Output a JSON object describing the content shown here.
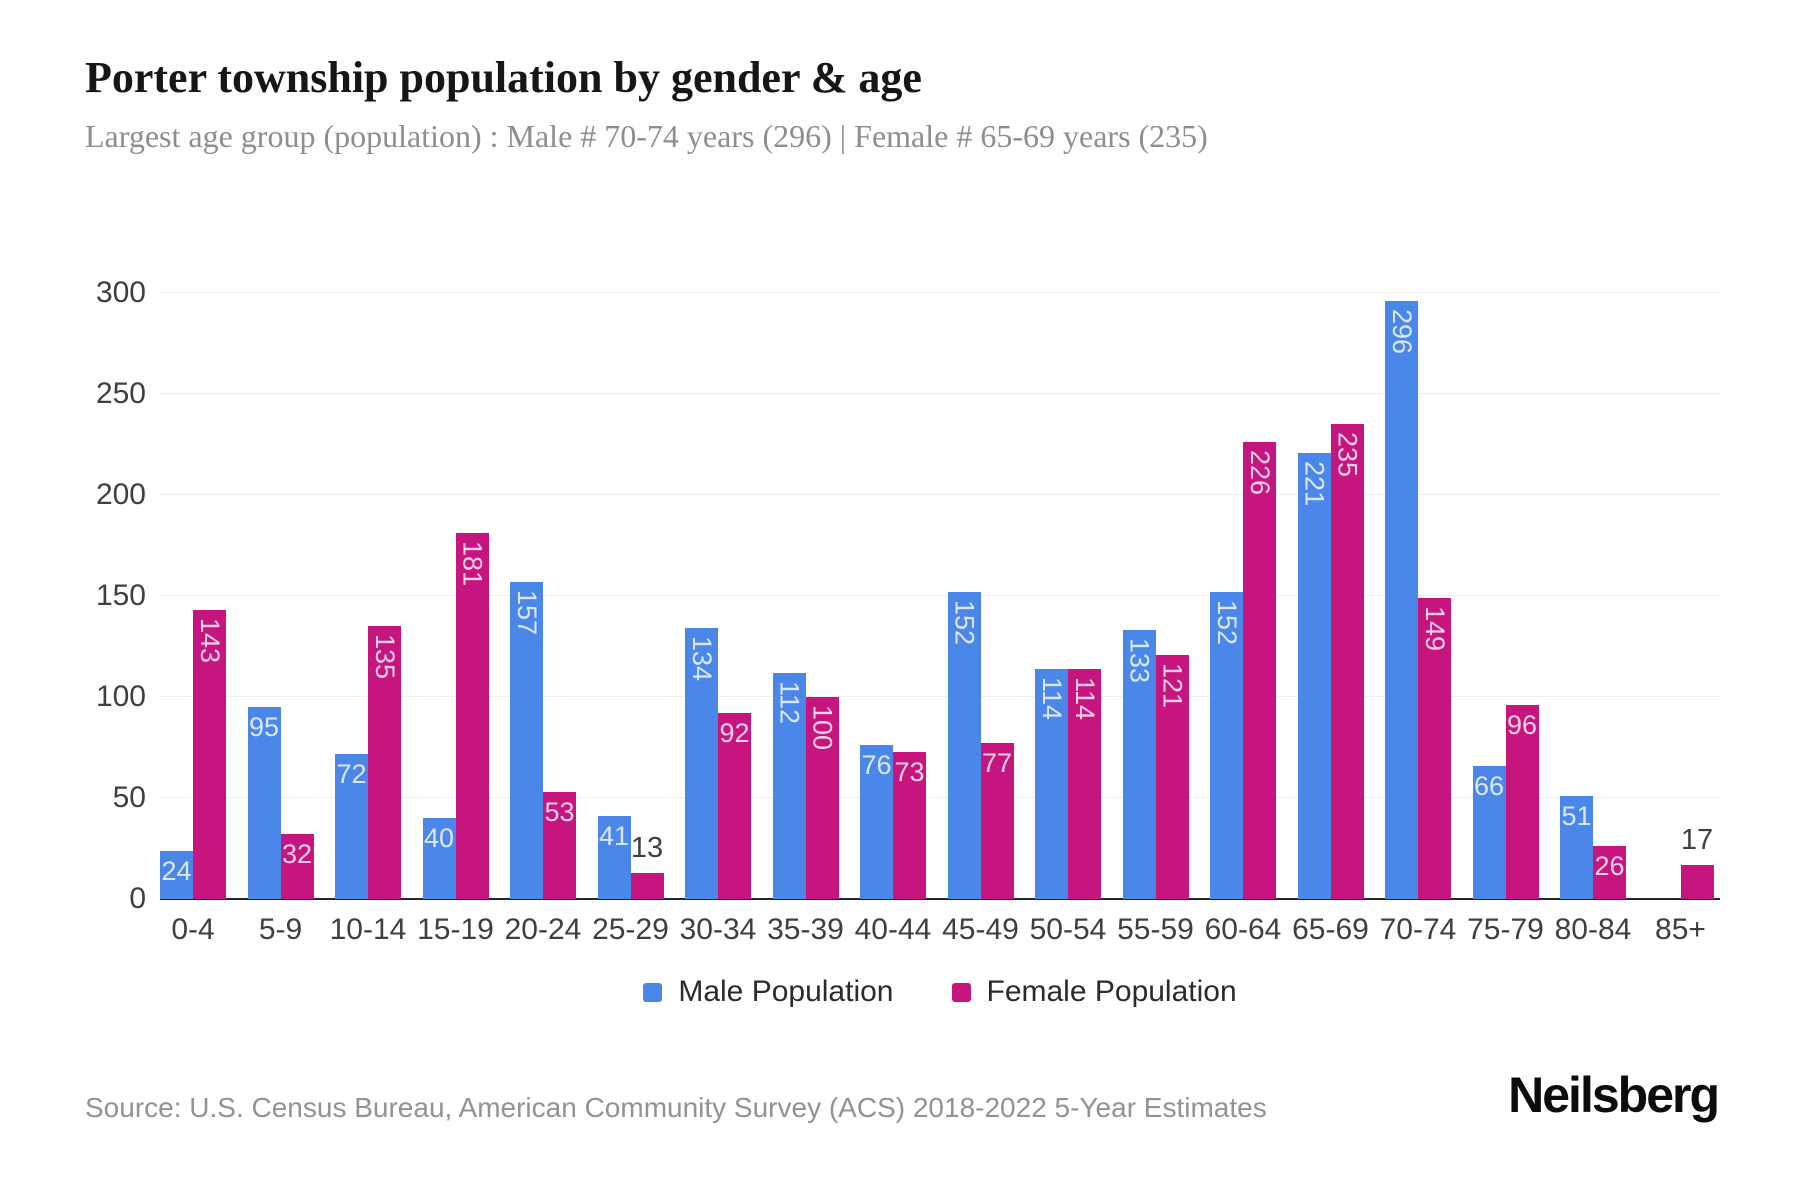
{
  "header": {
    "title": "Porter township population by gender & age",
    "subtitle": "Largest age group (population) : Male # 70-74 years (296) | Female # 65-69 years (235)"
  },
  "chart_data": {
    "type": "bar",
    "title": "Porter township population by gender & age",
    "categories": [
      "0-4",
      "5-9",
      "10-14",
      "15-19",
      "20-24",
      "25-29",
      "30-34",
      "35-39",
      "40-44",
      "45-49",
      "50-54",
      "55-59",
      "60-64",
      "65-69",
      "70-74",
      "75-79",
      "80-84",
      "85+"
    ],
    "series": [
      {
        "name": "Male Population",
        "color": "#4b87e8",
        "values": [
          24,
          95,
          72,
          40,
          157,
          41,
          134,
          112,
          76,
          152,
          114,
          133,
          152,
          221,
          296,
          66,
          51,
          0
        ]
      },
      {
        "name": "Female Population",
        "color": "#c7157f",
        "values": [
          143,
          32,
          135,
          181,
          53,
          13,
          92,
          100,
          73,
          77,
          114,
          121,
          226,
          235,
          149,
          96,
          26,
          17
        ]
      }
    ],
    "xlabel": "",
    "ylabel": "",
    "ylim": [
      0,
      300
    ],
    "yticks": [
      0,
      50,
      100,
      150,
      200,
      250,
      300
    ],
    "grid": true,
    "legend_position": "bottom",
    "bar_label_colors": {
      "inside": "rgba(255,255,255,0.8)",
      "outside": "#3f3f3f"
    }
  },
  "footer": {
    "source": "Source: U.S. Census Bureau, American Community Survey (ACS) 2018-2022 5-Year Estimates",
    "brand": "Neilsberg"
  }
}
